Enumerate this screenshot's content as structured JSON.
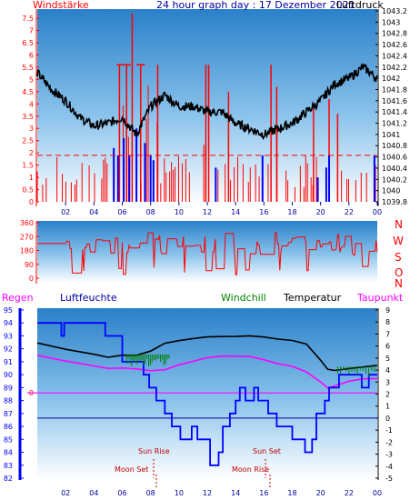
{
  "header": {
    "left_label": "Windstärke",
    "title": "24 hour graph day : 17 Dezember 2021",
    "right_label": "Luftdruck"
  },
  "middle": {
    "directions": [
      "N",
      "W",
      "S",
      "O",
      "N"
    ]
  },
  "bottom_legend": {
    "regen": "Regen",
    "luftfeuchte": "Luftfeuchte",
    "windchill": "Windchill",
    "temperatur": "Temperatur",
    "taupunkt": "Taupunkt"
  },
  "annotations": {
    "sun_rise": "Sun Rise",
    "sun_set": "Sun Set",
    "moon_set": "Moon Set",
    "moon_rise": "Moon Rise"
  },
  "colors": {
    "wind": "#ff0000",
    "gust": "#0000ff",
    "pressure": "#000000",
    "humidity": "#0000ff",
    "windchill": "#008000",
    "temperature": "#000000",
    "dewpoint": "#ff00ff",
    "frost_line": "#ff00ff",
    "annotation": "#c00000",
    "panel_top": "#2080c8",
    "panel_bottom": "#ffffff"
  },
  "chart_data": [
    {
      "type": "bar",
      "name": "wind",
      "x_ticks": [
        "02",
        "04",
        "06",
        "08",
        "10",
        "12",
        "14",
        "16",
        "18",
        "20",
        "22",
        "00"
      ],
      "y_left_ticks": [
        "0",
        "0.5",
        "1",
        "1.5",
        "2",
        "2.5",
        "3",
        "3.5",
        "4",
        "4.5",
        "5",
        "5.5",
        "6",
        "6.5",
        "7",
        "7.5"
      ],
      "y_right_ticks": [
        "1039.8",
        "1040",
        "1040.2",
        "1040.4",
        "1040.6",
        "1040.8",
        "1041",
        "1041.2",
        "1041.4",
        "1041.6",
        "1041.8",
        "1042",
        "1042.2",
        "1042.4",
        "1042.6",
        "1042.8",
        "1043",
        "1043.2"
      ],
      "ylim_left": [
        0,
        7.8
      ],
      "ylim_right": [
        1039.8,
        1043.2
      ],
      "pressure_samples": {
        "hours": [
          0,
          1,
          2,
          3,
          4,
          5,
          6,
          7,
          8,
          9,
          10,
          11,
          12,
          13,
          14,
          15,
          16,
          17,
          18,
          19,
          20,
          21,
          22,
          23,
          24
        ],
        "values": [
          1042.1,
          1041.8,
          1041.6,
          1041.3,
          1041.15,
          1041.2,
          1041.3,
          1041.0,
          1041.5,
          1041.7,
          1041.5,
          1041.5,
          1041.4,
          1041.4,
          1041.2,
          1041.1,
          1041.0,
          1041.1,
          1041.2,
          1041.4,
          1041.6,
          1041.9,
          1042.0,
          1042.2,
          1042.0
        ]
      }
    },
    {
      "type": "line",
      "name": "wind_direction",
      "y_ticks": [
        "0",
        "90",
        "180",
        "270",
        "360"
      ],
      "ylim": [
        0,
        360
      ],
      "x_ticks": [
        "02",
        "04",
        "06",
        "08",
        "10",
        "12",
        "14",
        "16",
        "18",
        "20",
        "22",
        "00"
      ]
    },
    {
      "type": "line",
      "name": "temperature_humidity",
      "x_ticks": [
        "02",
        "04",
        "06",
        "08",
        "10",
        "12",
        "14",
        "16",
        "18",
        "20",
        "22",
        "00"
      ],
      "y_left_ticks": [
        "82",
        "83",
        "84",
        "85",
        "86",
        "87",
        "88",
        "89",
        "90",
        "91",
        "92",
        "93",
        "94",
        "95"
      ],
      "y_right_ticks": [
        "-5",
        "-4",
        "-3",
        "-2",
        "-1",
        "0",
        "1",
        "2",
        "3",
        "4",
        "5",
        "6",
        "7",
        "8",
        "9"
      ],
      "y_mid_tick": "0",
      "ylim_left": [
        82,
        95
      ],
      "ylim_right": [
        -5,
        9
      ],
      "series": [
        {
          "name": "Temperatur",
          "hours": [
            0,
            2,
            4,
            5,
            6,
            7,
            8,
            9,
            10,
            11,
            12,
            13,
            14,
            15,
            16,
            17,
            18,
            19,
            20,
            20.5,
            21,
            22,
            23,
            24
          ],
          "values": [
            6.2,
            5.8,
            5.3,
            5.1,
            5.2,
            5.2,
            5.6,
            6.2,
            6.5,
            6.6,
            6.8,
            6.8,
            6.8,
            6.8,
            6.7,
            6.6,
            6.4,
            6.1,
            4.8,
            4.0,
            3.9,
            4.1,
            4.3,
            4.4
          ]
        },
        {
          "name": "Taupunkt",
          "hours": [
            0,
            2,
            4,
            5,
            6,
            7,
            8,
            9,
            10,
            11,
            12,
            13,
            14,
            15,
            16,
            17,
            18,
            19,
            20,
            20.5,
            21,
            22,
            23,
            24
          ],
          "values": [
            5.3,
            4.8,
            4.3,
            4.2,
            4.2,
            4.1,
            4.0,
            4.1,
            4.4,
            4.7,
            5.0,
            5.2,
            5.2,
            5.1,
            4.9,
            4.6,
            4.3,
            3.9,
            3.0,
            2.5,
            2.7,
            3.1,
            3.3,
            3.3
          ]
        },
        {
          "name": "Luftfeuchte",
          "hours": [
            0,
            1.7,
            1.7,
            1.9,
            1.9,
            4.8,
            4.8,
            6.0,
            6.0,
            7.5,
            7.5,
            7.9,
            7.9,
            8.4,
            8.4,
            9.0,
            9.0,
            9.5,
            9.5,
            10.1,
            10.1,
            10.9,
            10.9,
            11.3,
            11.3,
            12.2,
            12.2,
            12.8,
            12.8,
            13.1,
            13.1,
            13.6,
            13.6,
            14.0,
            14.0,
            14.3,
            14.3,
            14.7,
            14.7,
            15.3,
            15.3,
            15.6,
            15.6,
            16.3,
            16.3,
            16.9,
            16.9,
            18.0,
            18.0,
            18.9,
            18.9,
            19.4,
            19.4,
            19.7,
            19.7,
            20.3,
            20.3,
            20.6,
            20.6,
            21.3,
            21.3,
            21.9,
            21.9,
            22.9,
            22.9,
            23.4,
            23.4,
            24
          ],
          "values": [
            94,
            94,
            93,
            93,
            94,
            94,
            93,
            93,
            91,
            91,
            90,
            90,
            89,
            89,
            88,
            88,
            87,
            87,
            86,
            86,
            85,
            85,
            86,
            86,
            85,
            85,
            83,
            83,
            84,
            84,
            86,
            86,
            87,
            87,
            88,
            88,
            89,
            89,
            88,
            88,
            89,
            89,
            88,
            88,
            87,
            87,
            86,
            86,
            85,
            85,
            84,
            84,
            85,
            85,
            87,
            87,
            88,
            88,
            89,
            89,
            90,
            90,
            90,
            90,
            89,
            89,
            90,
            90
          ]
        }
      ]
    }
  ]
}
